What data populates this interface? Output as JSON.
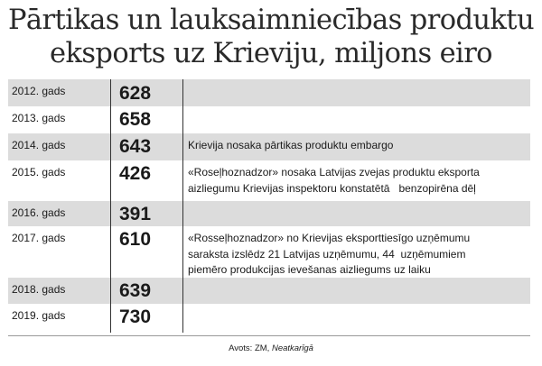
{
  "title_line1": "Pārtikas un lauksaimniecības produktu",
  "title_line2": "eksports uz Krieviju, miljons eiro",
  "source_prefix": "Avots: ZM,",
  "source_name": "Neatkarīgā",
  "chart_data": {
    "type": "table",
    "columns": [
      "",
      "",
      ""
    ],
    "rows": [
      {
        "year": "2012. gads",
        "value": "628",
        "note_lines": []
      },
      {
        "year": "2013. gads",
        "value": "658",
        "note_lines": []
      },
      {
        "year": "2014. gads",
        "value": "643",
        "note_lines": [
          "Krievija nosaka pārtikas produktu embargo"
        ]
      },
      {
        "year": "2015. gads",
        "value": "426",
        "note_lines": [
          "«Roseļhoznadzor» nosaka Latvijas zvejas produktu eksporta",
          "aizliegumu Krievijas inspektoru konstatētā   benzopirēna dēļ"
        ]
      },
      {
        "year": "2016. gads",
        "value": "391",
        "note_lines": []
      },
      {
        "year": "2017. gads",
        "value": "610",
        "note_lines": [
          "«Rosseļhoznadzor» no Krievijas eksporttiesīgo uzņēmumu",
          "saraksta izslēdz 21 Latvijas uzņēmumu, 44  uzņēmumiem",
          "piemēro produkcijas ievešanas aizliegums uz laiku"
        ]
      },
      {
        "year": "2018. gads",
        "value": "639",
        "note_lines": []
      },
      {
        "year": "2019. gads",
        "value": "730",
        "note_lines": []
      }
    ]
  }
}
